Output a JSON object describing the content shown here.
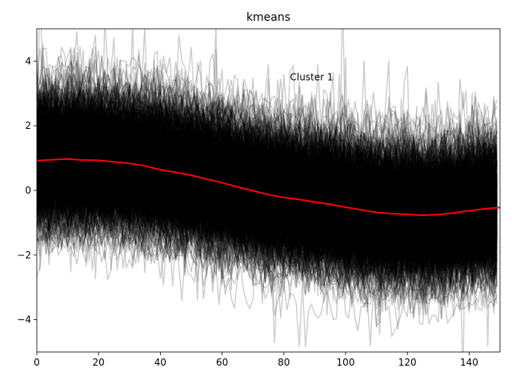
{
  "chart_data": {
    "type": "line",
    "title": "kmeans",
    "xlabel": "",
    "ylabel": "",
    "xlim": [
      0,
      150
    ],
    "ylim": [
      -5,
      5
    ],
    "xticks": [
      0,
      20,
      40,
      60,
      80,
      100,
      120,
      140
    ],
    "yticks": [
      -4,
      -2,
      0,
      2,
      4
    ],
    "grid": false,
    "annotations": [
      {
        "text": "Cluster 1",
        "x": 82,
        "y": 3.5
      }
    ],
    "band": {
      "description_color": "#000000",
      "n_series_approx": 800,
      "spread_std": 0.9
    },
    "series": [
      {
        "color": "#ff0000",
        "x": [
          0,
          5,
          10,
          15,
          20,
          25,
          30,
          35,
          40,
          45,
          50,
          55,
          60,
          65,
          70,
          75,
          80,
          85,
          90,
          95,
          100,
          105,
          110,
          115,
          120,
          125,
          130,
          135,
          140,
          145,
          150
        ],
        "values": [
          0.92,
          0.95,
          0.97,
          0.94,
          0.93,
          0.88,
          0.84,
          0.76,
          0.64,
          0.56,
          0.47,
          0.35,
          0.24,
          0.11,
          -0.01,
          -0.13,
          -0.22,
          -0.28,
          -0.36,
          -0.43,
          -0.52,
          -0.6,
          -0.68,
          -0.72,
          -0.74,
          -0.77,
          -0.75,
          -0.7,
          -0.63,
          -0.57,
          -0.53
        ]
      }
    ]
  },
  "colors": {
    "band": "#000000",
    "mean_line": "#ff0000",
    "axes": "#000000"
  }
}
